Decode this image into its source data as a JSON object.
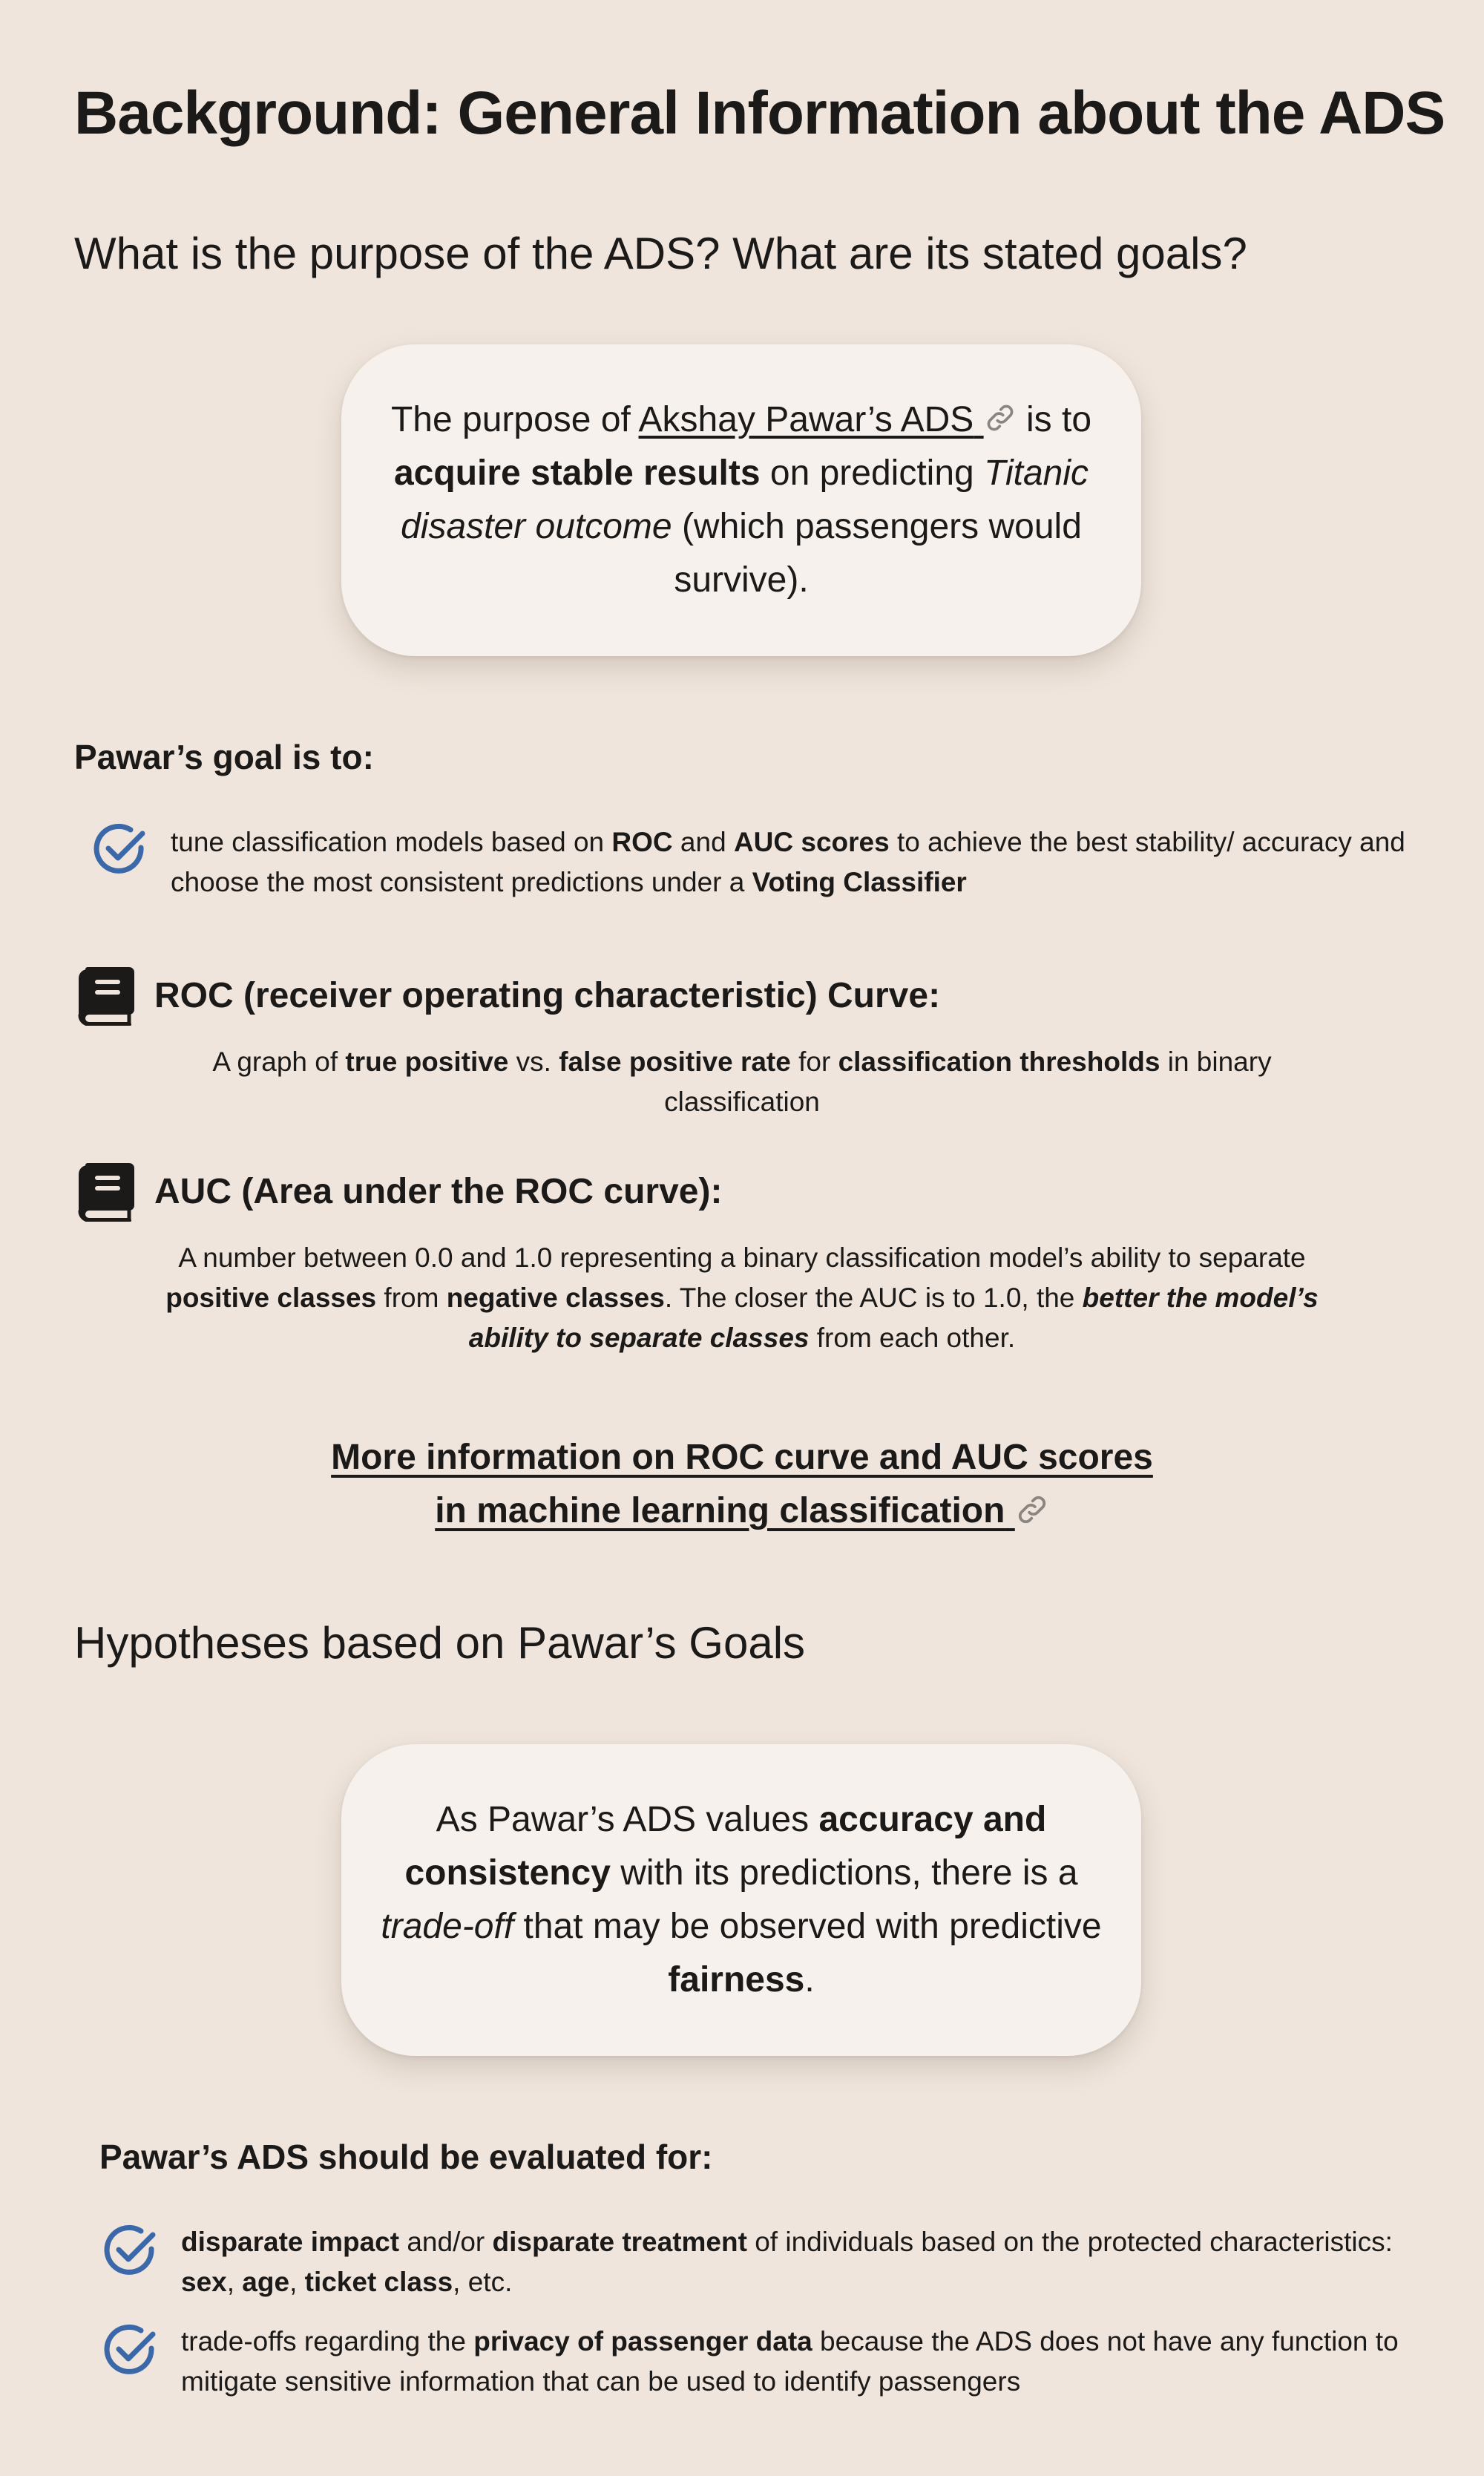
{
  "page_title": "Background: General Information about the ADS",
  "purpose": {
    "heading": "What is the purpose of the ADS? What are its stated goals?",
    "callout": {
      "t1": "The purpose of ",
      "link": "Akshay Pawar’s ADS",
      "t2": " is to ",
      "b1": "acquire stable results",
      "t3": " on predicting ",
      "i1": "Titanic disaster outcome",
      "t4": " (which passengers would survive)."
    }
  },
  "goals": {
    "label": "Pawar’s goal is to:",
    "item": {
      "t1": "tune classification models based on ",
      "b1": "ROC",
      "t2": " and ",
      "b2": "AUC scores",
      "t3": " to achieve the best stability/ accuracy and choose the most consistent predictions under a ",
      "b3": "Voting Classifier"
    }
  },
  "roc": {
    "heading": "ROC (receiver operating characteristic) Curve:",
    "def": {
      "t1": "A graph of ",
      "b1": "true positive",
      "t2": " vs. ",
      "b2": "false positive rate",
      "t3": " for ",
      "b3": "classification thresholds",
      "t4": " in binary classification"
    }
  },
  "auc": {
    "heading": "AUC (Area under the ROC curve):",
    "def": {
      "t1": "A number between 0.0 and 1.0 representing a binary classification model’s ability to separate ",
      "b1": "positive classes",
      "t2": " from ",
      "b2": "negative classes",
      "t3": ". The closer the AUC is to 1.0, the ",
      "bi1": "better the model’s ability to separate classes",
      "t4": " from each other."
    }
  },
  "more_info": {
    "line1": "More information on ROC curve and AUC scores",
    "line2": "in machine learning classification"
  },
  "hypotheses": {
    "heading": "Hypotheses based on Pawar’s Goals",
    "callout": {
      "t1": "As Pawar’s ADS values ",
      "b1": "accuracy and consistency",
      "t2": " with its predictions, there is a ",
      "i1": "trade-off",
      "t3": " that may be observed with predictive ",
      "b2": "fairness",
      "t4": "."
    }
  },
  "evaluation": {
    "label": "Pawar’s ADS should be evaluated for:",
    "item1": {
      "b1": "disparate impact",
      "t1": " and/or ",
      "b2": "disparate treatment",
      "t2": " of individuals based on the protected characteristics: ",
      "b3": "sex",
      "t3": ", ",
      "b4": "age",
      "t4": ", ",
      "b5": "ticket class",
      "t5": ", etc."
    },
    "item2": {
      "t1": "trade-offs regarding the ",
      "b1": "privacy of passenger data",
      "t2": " because the ADS does not have any function to mitigate sensitive information that can be used to identify passengers"
    }
  },
  "icons": {
    "check": "check-circle-icon",
    "book": "book-icon",
    "link": "link-icon"
  },
  "colors": {
    "background": "#efe5dc",
    "callout": "#f6f1ec",
    "text": "#1c1a19",
    "check_blue": "#3a68a8"
  }
}
